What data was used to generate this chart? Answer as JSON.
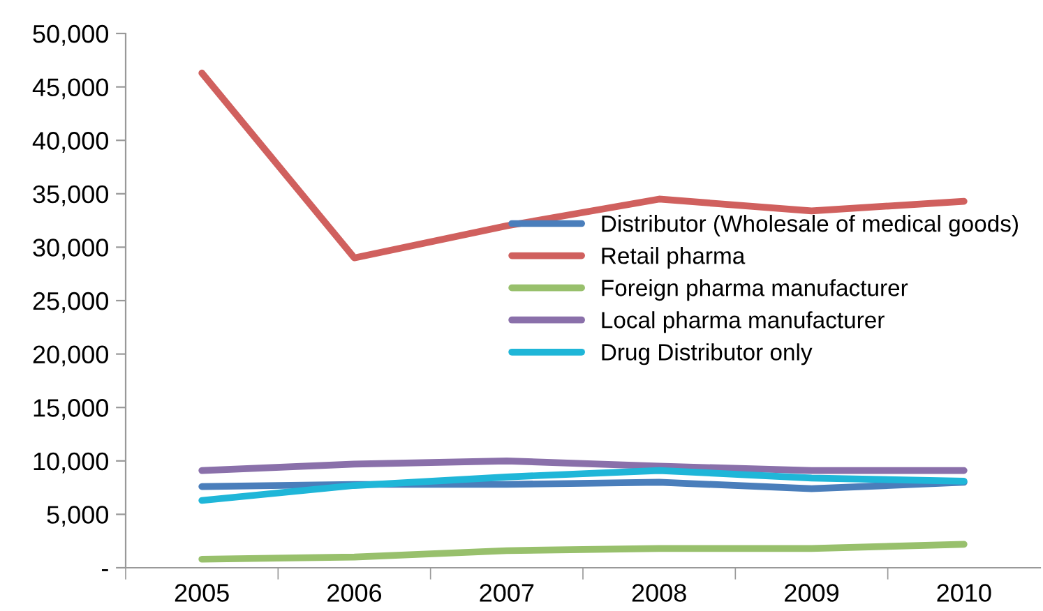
{
  "chart_data": {
    "type": "line",
    "categories": [
      "2005",
      "2006",
      "2007",
      "2008",
      "2009",
      "2010"
    ],
    "series": [
      {
        "name": "Distributor (Wholesale of medical goods)",
        "color": "#4a7ebb",
        "values": [
          7600,
          7800,
          7800,
          8000,
          7400,
          8000
        ]
      },
      {
        "name": "Retail pharma",
        "color": "#d0605e",
        "values": [
          46300,
          29000,
          32000,
          34500,
          33400,
          34300
        ]
      },
      {
        "name": "Foreign pharma manufacturer",
        "color": "#98c06c",
        "values": [
          800,
          1000,
          1600,
          1800,
          1800,
          2200
        ]
      },
      {
        "name": "Local pharma manufacturer",
        "color": "#8a70aa",
        "values": [
          9100,
          9700,
          10000,
          9500,
          9100,
          9100
        ]
      },
      {
        "name": "Drug Distributor only",
        "color": "#1fb6d8",
        "values": [
          6300,
          7700,
          8500,
          9100,
          8400,
          8100
        ]
      }
    ],
    "ylim": [
      0,
      50000
    ],
    "yticks": [
      {
        "value": 0,
        "label": "-"
      },
      {
        "value": 5000,
        "label": "5,000"
      },
      {
        "value": 10000,
        "label": "10,000"
      },
      {
        "value": 15000,
        "label": "15,000"
      },
      {
        "value": 20000,
        "label": "20,000"
      },
      {
        "value": 25000,
        "label": "25,000"
      },
      {
        "value": 30000,
        "label": "30,000"
      },
      {
        "value": 35000,
        "label": "35,000"
      },
      {
        "value": 40000,
        "label": "40,000"
      },
      {
        "value": 45000,
        "label": "45,000"
      },
      {
        "value": 50000,
        "label": "50,000"
      }
    ],
    "grid": false,
    "legend": "right",
    "marker": "none",
    "line_style": "solid"
  }
}
